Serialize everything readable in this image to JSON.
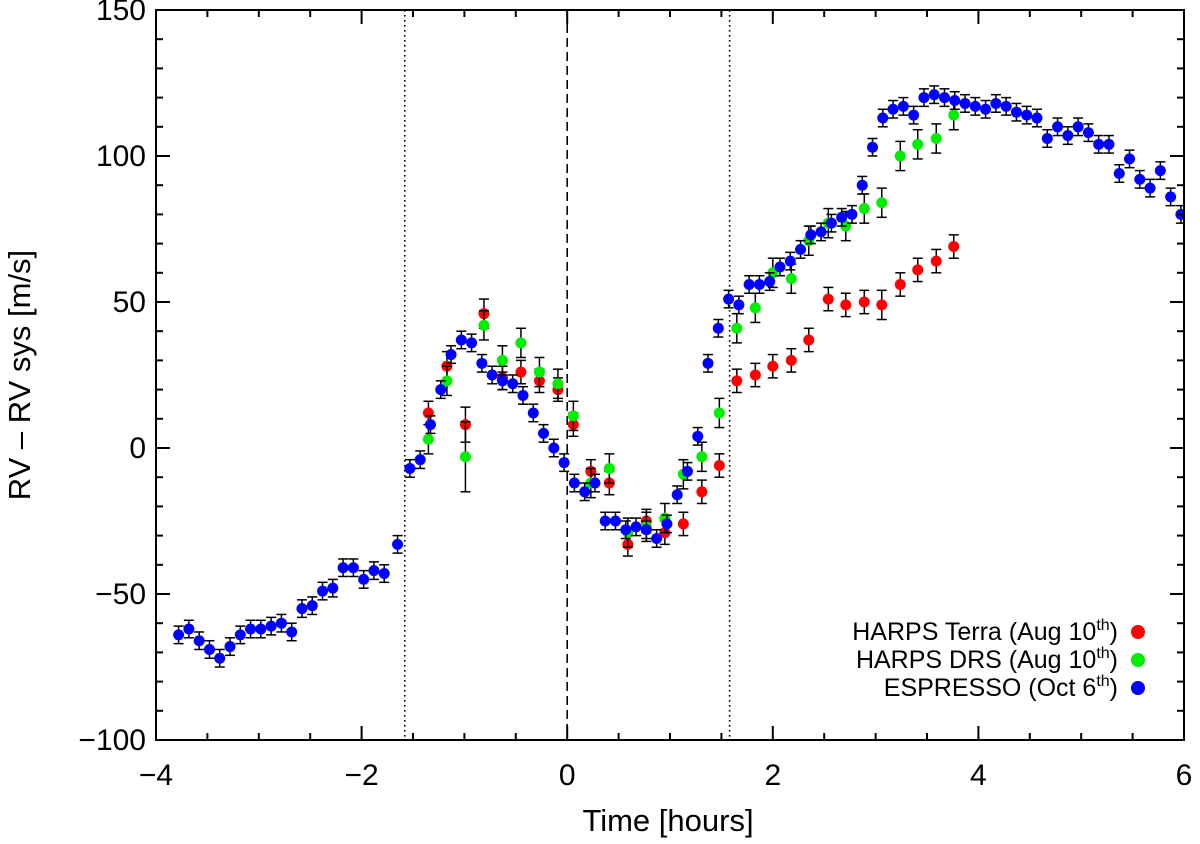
{
  "chart_data": {
    "type": "scatter",
    "title": "",
    "xlabel": "Time [hours]",
    "ylabel": "RV – RV sys [m/s]",
    "xlim": [
      -4,
      6
    ],
    "ylim": [
      -100,
      150
    ],
    "x_ticks": [
      -4,
      -2,
      0,
      2,
      4,
      6
    ],
    "x_tick_labels": [
      "−4",
      "−2",
      "0",
      "2",
      "4",
      "6"
    ],
    "y_ticks": [
      -100,
      -50,
      0,
      50,
      100,
      150
    ],
    "y_tick_labels": [
      "−100",
      "−50",
      "0",
      "50",
      "100",
      "150"
    ],
    "grid": false,
    "legend_position": "bottom-right",
    "reference_lines": [
      {
        "x": -1.58,
        "style": "dotted"
      },
      {
        "x": 0,
        "style": "dashed"
      },
      {
        "x": 1.58,
        "style": "dotted"
      }
    ],
    "series": [
      {
        "name": "HARPS Terra (Aug 10th)",
        "legend_main": "HARPS Terra (Aug 10",
        "legend_sup": "th",
        "legend_close": ")",
        "color": "#ff0000",
        "x": [
          -1.35,
          -1.17,
          -0.99,
          -0.81,
          -0.63,
          -0.45,
          -0.27,
          -0.09,
          0.06,
          0.23,
          0.41,
          0.59,
          0.77,
          0.95,
          1.13,
          1.31,
          1.48,
          1.65,
          1.83,
          2.0,
          2.18,
          2.35,
          2.54,
          2.71,
          2.89,
          3.06,
          3.24,
          3.41,
          3.59,
          3.76
        ],
        "y": [
          12,
          28,
          8,
          46,
          24,
          26,
          23,
          20,
          8,
          -8,
          -12,
          -33,
          -25,
          -29,
          -26,
          -15,
          -6,
          23,
          25,
          28,
          30,
          37,
          51,
          49,
          50,
          49,
          56,
          61,
          64,
          69
        ],
        "err": [
          4,
          5,
          6,
          5,
          4,
          4,
          4,
          4,
          4,
          4,
          4,
          4,
          4,
          4,
          4,
          4,
          4,
          4,
          4,
          4,
          4,
          4,
          4,
          4,
          4,
          5,
          4,
          4,
          4,
          4
        ]
      },
      {
        "name": "HARPS DRS (Aug 10th)",
        "legend_main": "HARPS DRS (Aug 10",
        "legend_sup": "th",
        "legend_close": ")",
        "color": "#00ee00",
        "x": [
          -1.35,
          -1.17,
          -0.99,
          -0.81,
          -0.63,
          -0.45,
          -0.27,
          -0.09,
          0.06,
          0.23,
          0.41,
          0.59,
          0.77,
          0.95,
          1.13,
          1.31,
          1.48,
          1.65,
          1.83,
          2.0,
          2.18,
          2.35,
          2.54,
          2.71,
          2.89,
          3.06,
          3.24,
          3.41,
          3.59,
          3.76
        ],
        "y": [
          3,
          23,
          -3,
          42,
          30,
          36,
          26,
          22,
          11,
          -12,
          -7,
          -29,
          -27,
          -24,
          -9,
          -3,
          12,
          41,
          48,
          60,
          58,
          71,
          77,
          76,
          82,
          84,
          100,
          104,
          106,
          114
        ],
        "err": [
          5,
          5,
          12,
          5,
          5,
          5,
          5,
          5,
          5,
          5,
          5,
          5,
          5,
          5,
          5,
          5,
          5,
          5,
          5,
          5,
          5,
          5,
          5,
          5,
          5,
          5,
          5,
          5,
          5,
          5
        ]
      },
      {
        "name": "ESPRESSO (Oct 6th)",
        "legend_main": "ESPRESSO (Oct 6",
        "legend_sup": "th",
        "legend_close": ")",
        "color": "#0000ff",
        "x": [
          -3.78,
          -3.68,
          -3.58,
          -3.48,
          -3.38,
          -3.28,
          -3.18,
          -3.08,
          -2.98,
          -2.88,
          -2.78,
          -2.68,
          -2.58,
          -2.48,
          -2.38,
          -2.28,
          -2.18,
          -2.08,
          -1.98,
          -1.88,
          -1.78,
          -1.65,
          -1.53,
          -1.43,
          -1.33,
          -1.23,
          -1.13,
          -1.03,
          -0.93,
          -0.83,
          -0.73,
          -0.63,
          -0.53,
          -0.43,
          -0.33,
          -0.23,
          -0.13,
          -0.03,
          0.07,
          0.17,
          0.27,
          0.37,
          0.47,
          0.57,
          0.67,
          0.77,
          0.87,
          0.97,
          1.07,
          1.17,
          1.27,
          1.37,
          1.47,
          1.57,
          1.67,
          1.77,
          1.87,
          1.97,
          2.07,
          2.17,
          2.27,
          2.37,
          2.47,
          2.57,
          2.67,
          2.77,
          2.87,
          2.97,
          3.07,
          3.17,
          3.27,
          3.37,
          3.47,
          3.57,
          3.67,
          3.77,
          3.87,
          3.97,
          4.07,
          4.17,
          4.27,
          4.37,
          4.47,
          4.57,
          4.67,
          4.77,
          4.87,
          4.97,
          5.07,
          5.17,
          5.27,
          5.37,
          5.47,
          5.57,
          5.67,
          5.77,
          5.87,
          5.97
        ],
        "y": [
          -64,
          -62,
          -66,
          -69,
          -72,
          -68,
          -64,
          -62,
          -62,
          -61,
          -60,
          -63,
          -55,
          -54,
          -49,
          -48,
          -41,
          -41,
          -45,
          -42,
          -43,
          -33,
          -7,
          -4,
          8,
          20,
          32,
          37,
          36,
          29,
          25,
          23,
          22,
          18,
          12,
          5,
          0,
          -5,
          -12,
          -15,
          -12,
          -25,
          -25,
          -28,
          -27,
          -28,
          -31,
          -26,
          -16,
          -8,
          4,
          29,
          41,
          51,
          49,
          56,
          56,
          57,
          62,
          64,
          68,
          73,
          74,
          77,
          79,
          80,
          90,
          103,
          113,
          116,
          117,
          114,
          120,
          121,
          120,
          119,
          118,
          117,
          116,
          118,
          117,
          115,
          114,
          113,
          106,
          110,
          107,
          110,
          108,
          104,
          104,
          94,
          99,
          92,
          89,
          95,
          86,
          80
        ],
        "err": [
          3,
          3,
          3,
          3,
          3,
          3,
          3,
          3,
          3,
          3,
          3,
          3,
          3,
          3,
          3,
          3,
          3,
          3,
          3,
          3,
          3,
          3,
          3,
          3,
          3,
          3,
          3,
          3,
          3,
          3,
          3,
          3,
          3,
          3,
          3,
          3,
          3,
          3,
          3,
          3,
          3,
          3,
          3,
          3,
          3,
          3,
          3,
          3,
          3,
          3,
          3,
          3,
          3,
          3,
          3,
          3,
          3,
          3,
          3,
          3,
          3,
          3,
          3,
          3,
          3,
          3,
          3,
          3,
          3,
          3,
          3,
          3,
          3,
          3,
          3,
          3,
          3,
          3,
          3,
          3,
          3,
          3,
          3,
          3,
          3,
          3,
          3,
          3,
          3,
          3,
          3,
          3,
          3,
          3,
          3,
          3,
          3,
          3
        ]
      }
    ]
  }
}
